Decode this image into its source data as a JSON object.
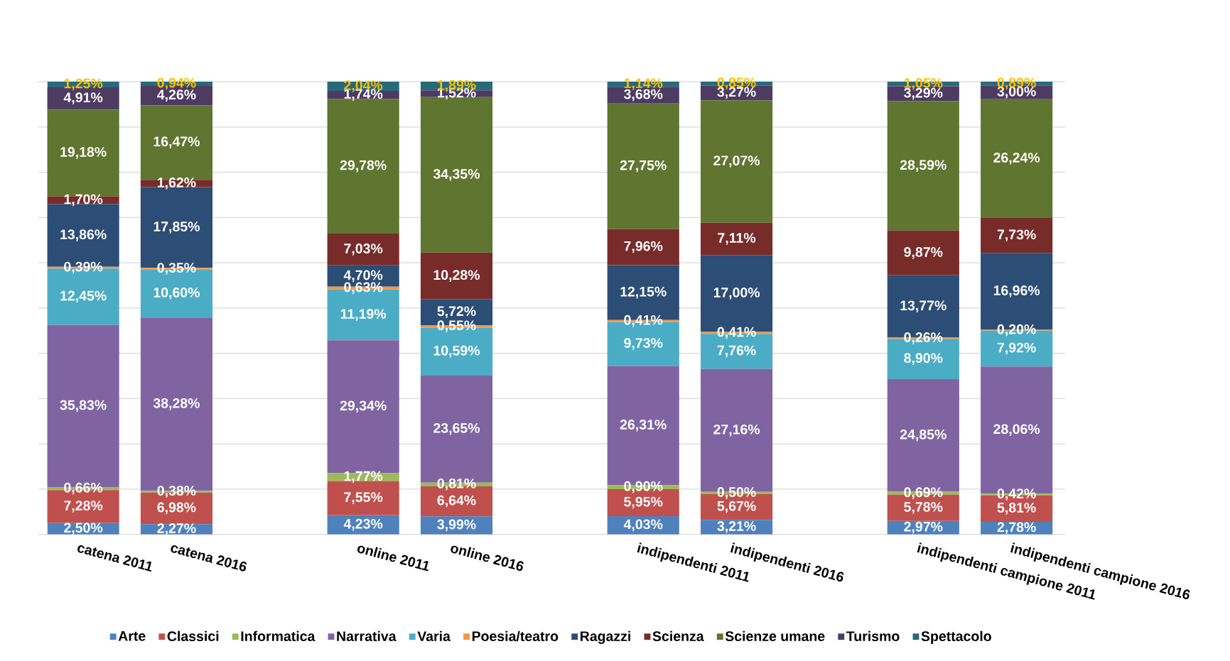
{
  "chart_data": {
    "type": "bar",
    "stacked": true,
    "categories": [
      "catena 2011",
      "catena 2016",
      null,
      "online 2011",
      "online 2016",
      null,
      "indipendenti 2011",
      "indipendenti 2016",
      null,
      "indipendenti campione 2011",
      "indipendenti campione 2016"
    ],
    "ylim": [
      0,
      100
    ],
    "yticks": [
      {
        "value": 0,
        "label": null
      },
      {
        "value": 10,
        "label": null
      },
      {
        "value": 20,
        "label": null
      },
      {
        "value": 30,
        "label": null
      },
      {
        "value": 40,
        "label": null
      },
      {
        "value": 50,
        "label": null
      },
      {
        "value": 60,
        "label": null
      },
      {
        "value": 70,
        "label": null
      },
      {
        "value": 80,
        "label": null
      },
      {
        "value": 90,
        "label": null
      },
      {
        "value": 100,
        "label": null
      }
    ],
    "grid": "y",
    "legend": "bottom",
    "tick_labels": "x",
    "series": [
      {
        "name": "Arte",
        "color": "#4f81bd",
        "values": [
          2.5,
          2.27,
          null,
          4.23,
          3.99,
          null,
          4.03,
          3.21,
          null,
          2.97,
          2.78
        ],
        "value_labels": [
          "2,50%",
          "2,27%",
          null,
          "4,23%",
          "3,99%",
          null,
          "4,03%",
          "3,21%",
          null,
          "2,97%",
          "2,78%"
        ]
      },
      {
        "name": "Classici",
        "color": "#c0504d",
        "values": [
          7.28,
          6.98,
          null,
          7.55,
          6.64,
          null,
          5.95,
          5.67,
          null,
          5.78,
          5.81
        ],
        "value_labels": [
          "7,28%",
          "6,98%",
          null,
          "7,55%",
          "6,64%",
          null,
          "5,95%",
          "5,67%",
          null,
          "5,78%",
          "5,81%"
        ]
      },
      {
        "name": "Informatica",
        "color": "#9bbb59",
        "values": [
          0.66,
          0.38,
          null,
          1.77,
          0.81,
          null,
          0.9,
          0.5,
          null,
          0.69,
          0.42
        ],
        "value_labels": [
          "0,66%",
          "0,38%",
          null,
          "1,77%",
          "0,81%",
          null,
          "0,90%",
          "0,50%",
          null,
          "0,69%",
          "0,42%"
        ]
      },
      {
        "name": "Narrativa",
        "color": "#8064a2",
        "values": [
          35.83,
          38.28,
          null,
          29.34,
          23.65,
          null,
          26.31,
          27.16,
          null,
          24.85,
          28.06
        ],
        "value_labels": [
          "35,83%",
          "38,28%",
          null,
          "29,34%",
          "23,65%",
          null,
          "26,31%",
          "27,16%",
          null,
          "24,85%",
          "28,06%"
        ]
      },
      {
        "name": "Varia",
        "color": "#4bacc6",
        "values": [
          12.45,
          10.6,
          null,
          11.19,
          10.59,
          null,
          9.73,
          7.76,
          null,
          8.9,
          7.92
        ],
        "value_labels": [
          "12,45%",
          "10,60%",
          null,
          "11,19%",
          "10,59%",
          null,
          "9,73%",
          "7,76%",
          null,
          "8,90%",
          "7,92%"
        ]
      },
      {
        "name": "Poesia/teatro",
        "color": "#f79646",
        "values": [
          0.39,
          0.35,
          null,
          0.63,
          0.55,
          null,
          0.41,
          0.41,
          null,
          0.26,
          0.2
        ],
        "value_labels": [
          "0,39%",
          "0,35%",
          null,
          "0,63%",
          "0,55%",
          null,
          "0,41%",
          "0,41%",
          null,
          "0,26%",
          "0,20%"
        ]
      },
      {
        "name": "Ragazzi",
        "color": "#2c4d75",
        "values": [
          13.86,
          17.85,
          null,
          4.7,
          5.72,
          null,
          12.15,
          17.0,
          null,
          13.77,
          16.96
        ],
        "value_labels": [
          "13,86%",
          "17,85%",
          null,
          "4,70%",
          "5,72%",
          null,
          "12,15%",
          "17,00%",
          null,
          "13,77%",
          "16,96%"
        ]
      },
      {
        "name": "Scienza",
        "color": "#772c2a",
        "values": [
          1.7,
          1.62,
          null,
          7.03,
          10.28,
          null,
          7.96,
          7.11,
          null,
          9.87,
          7.73
        ],
        "value_labels": [
          "1,70%",
          "1,62%",
          null,
          "7,03%",
          "10,28%",
          null,
          "7,96%",
          "7,11%",
          null,
          "9,87%",
          "7,73%"
        ]
      },
      {
        "name": "Scienze umane",
        "color": "#5f7530",
        "values": [
          19.18,
          16.47,
          null,
          29.78,
          34.35,
          null,
          27.75,
          27.07,
          null,
          28.59,
          26.24
        ],
        "value_labels": [
          "19,18%",
          "16,47%",
          null,
          "29,78%",
          "34,35%",
          null,
          "27,75%",
          "27,07%",
          null,
          "28,59%",
          "26,24%"
        ]
      },
      {
        "name": "Turismo",
        "color": "#4d3b62",
        "values": [
          4.91,
          4.26,
          null,
          1.74,
          1.52,
          null,
          3.68,
          3.27,
          null,
          3.29,
          3.0
        ],
        "value_labels": [
          "4,91%",
          "4,26%",
          null,
          "1,74%",
          "1,52%",
          null,
          "3,68%",
          "3,27%",
          null,
          "3,29%",
          "3,00%"
        ]
      },
      {
        "name": "Spettacolo",
        "color": "#276a7c",
        "values": [
          1.25,
          0.94,
          null,
          2.04,
          1.89,
          null,
          1.14,
          0.85,
          null,
          1.05,
          0.89
        ],
        "value_labels": [
          "1,25%",
          "0,94%",
          null,
          "2,04%",
          "1,89%",
          null,
          "1,14%",
          "0,85%",
          null,
          "1,05%",
          "0,89%"
        ]
      }
    ]
  }
}
